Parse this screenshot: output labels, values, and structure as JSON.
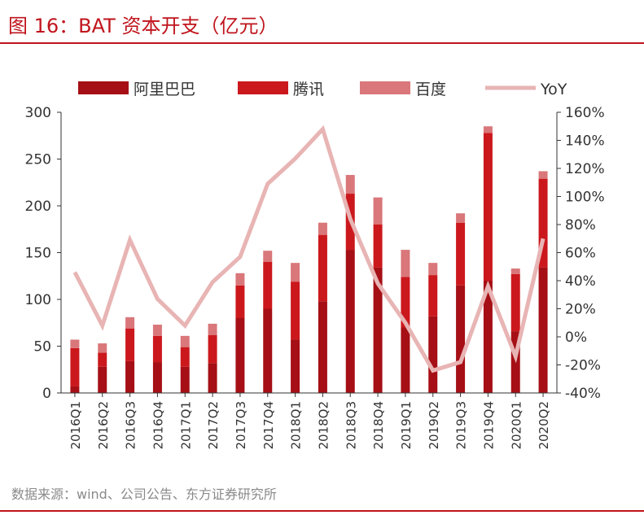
{
  "header": {
    "title": "图 16：BAT 资本开支（亿元）"
  },
  "footer": {
    "source": "数据来源：wind、公司公告、东方证券研究所"
  },
  "colors": {
    "alibaba": "#a50f15",
    "tencent": "#cb181d",
    "baidu": "#d9777a",
    "yoy": "#e8b4b4",
    "brand": "#c0141c"
  },
  "chart_data": {
    "type": "bar",
    "stacked": true,
    "categories": [
      "2016Q1",
      "2016Q2",
      "2016Q3",
      "2016Q4",
      "2017Q1",
      "2017Q2",
      "2017Q3",
      "2017Q4",
      "2018Q1",
      "2018Q2",
      "2018Q3",
      "2018Q4",
      "2019Q1",
      "2019Q2",
      "2019Q3",
      "2019Q4",
      "2020Q1",
      "2020Q2"
    ],
    "series": [
      {
        "name": "阿里巴巴",
        "values": [
          7,
          28,
          34,
          33,
          28,
          32,
          80,
          90,
          57,
          98,
          153,
          134,
          70,
          82,
          115,
          120,
          66,
          134
        ]
      },
      {
        "name": "腾讯",
        "values": [
          41,
          15,
          35,
          28,
          21,
          30,
          35,
          50,
          62,
          71,
          60,
          46,
          54,
          44,
          67,
          158,
          61,
          95
        ]
      },
      {
        "name": "百度",
        "values": [
          9,
          10,
          12,
          12,
          12,
          12,
          13,
          12,
          20,
          13,
          20,
          29,
          29,
          13,
          10,
          7,
          6,
          8
        ]
      }
    ],
    "line": {
      "name": "YoY",
      "axis": "right",
      "values": [
        46,
        8,
        69,
        27,
        8,
        39,
        57,
        109,
        127,
        148,
        84,
        38,
        10,
        -24,
        -18,
        36,
        -14,
        70
      ]
    },
    "legend": [
      "阿里巴巴",
      "腾讯",
      "百度",
      "YoY"
    ],
    "left_axis": {
      "ylim": [
        0,
        300
      ],
      "ticks": [
        "0",
        "50",
        "100",
        "150",
        "200",
        "250",
        "300"
      ]
    },
    "right_axis": {
      "ylim": [
        -40,
        160
      ],
      "ticks": [
        "-40%",
        "-20%",
        "0%",
        "20%",
        "40%",
        "60%",
        "80%",
        "100%",
        "120%",
        "140%",
        "160%"
      ]
    },
    "legend_position": "top"
  }
}
